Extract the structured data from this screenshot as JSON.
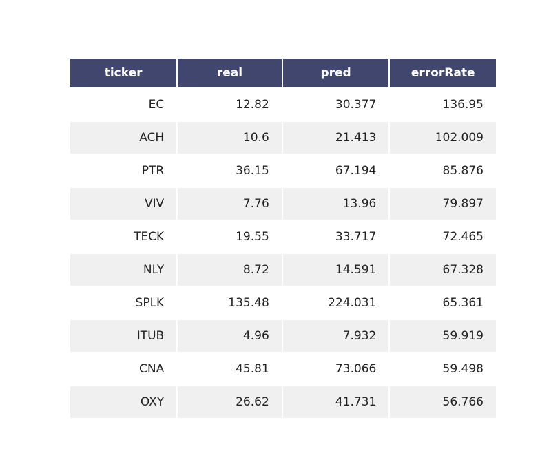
{
  "chart_data": {
    "type": "table",
    "columns": [
      "ticker",
      "real",
      "pred",
      "errorRate"
    ],
    "rows": [
      [
        "EC",
        "12.82",
        "30.377",
        "136.95"
      ],
      [
        "ACH",
        "10.6",
        "21.413",
        "102.009"
      ],
      [
        "PTR",
        "36.15",
        "67.194",
        "85.876"
      ],
      [
        "VIV",
        "7.76",
        "13.96",
        "79.897"
      ],
      [
        "TECK",
        "19.55",
        "33.717",
        "72.465"
      ],
      [
        "NLY",
        "8.72",
        "14.591",
        "67.328"
      ],
      [
        "SPLK",
        "135.48",
        "224.031",
        "65.361"
      ],
      [
        "ITUB",
        "4.96",
        "7.932",
        "59.919"
      ],
      [
        "CNA",
        "45.81",
        "73.066",
        "59.498"
      ],
      [
        "OXY",
        "26.62",
        "41.731",
        "56.766"
      ]
    ],
    "layout": {
      "header_align": "center",
      "cell_align": "right",
      "grid": "white 2px gaps between cells",
      "row_striping": "even data rows shaded"
    },
    "colors": {
      "header_bg": "#40466e",
      "header_text": "#ffffff",
      "row_bg": "#ffffff",
      "row_alt_bg": "#f0f0f1",
      "cell_text": "#222222",
      "grid": "#ffffff",
      "page_bg": "#ffffff"
    }
  }
}
